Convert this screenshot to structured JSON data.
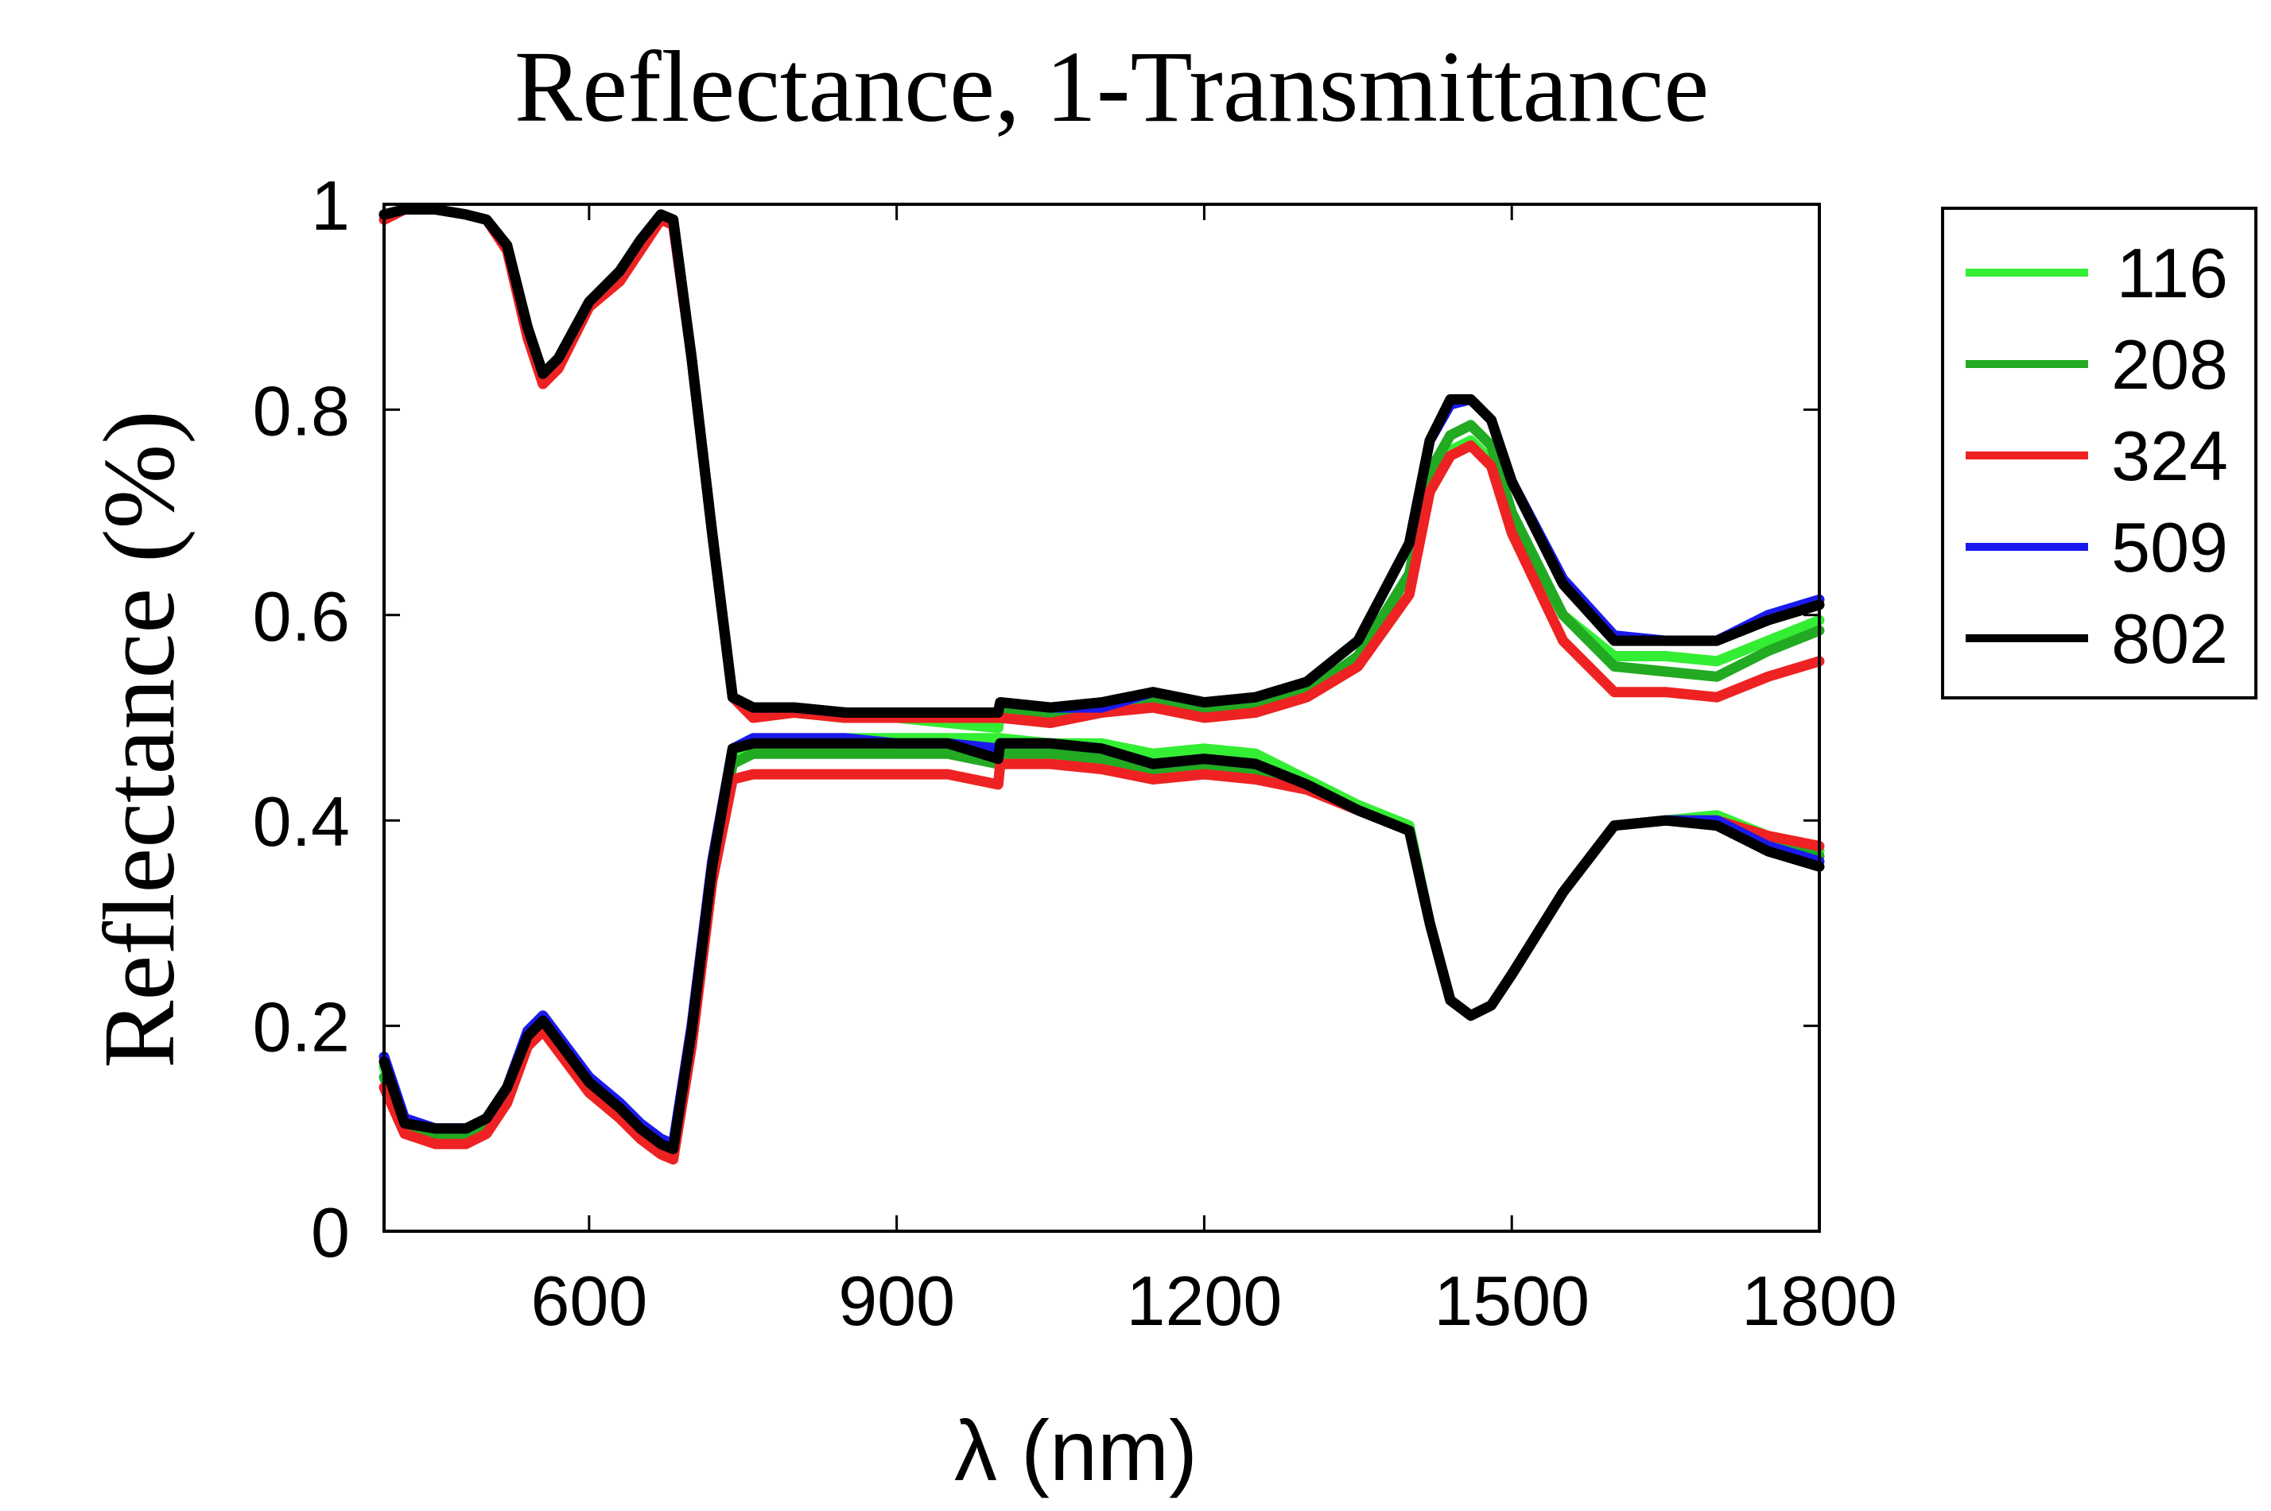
{
  "chart_data": {
    "type": "line",
    "title": "Reflectance, 1-Transmittance",
    "xlabel": "λ (nm)",
    "ylabel": "Reflectance (%)",
    "xlim": [
      400,
      1800
    ],
    "ylim": [
      0,
      1
    ],
    "xticks": [
      600,
      900,
      1200,
      1500,
      1800
    ],
    "yticks": [
      0,
      0.2,
      0.4,
      0.6,
      0.8,
      1
    ],
    "ytick_labels": [
      "0",
      "0.2",
      "0.4",
      "0.6",
      "0.8",
      "1"
    ],
    "legend_position": "outside-right-top",
    "x": [
      400,
      420,
      450,
      480,
      500,
      520,
      540,
      555,
      570,
      600,
      630,
      650,
      670,
      682,
      700,
      720,
      740,
      760,
      800,
      850,
      900,
      950,
      999,
      1001,
      1050,
      1100,
      1150,
      1200,
      1250,
      1300,
      1350,
      1400,
      1420,
      1440,
      1460,
      1480,
      1500,
      1550,
      1600,
      1650,
      1700,
      1750,
      1800
    ],
    "series": [
      {
        "name": "116",
        "color": "#33ee33",
        "upper": [
          0.99,
          0.995,
          0.995,
          0.99,
          0.985,
          0.96,
          0.88,
          0.835,
          0.85,
          0.905,
          0.935,
          0.965,
          0.99,
          0.985,
          0.85,
          0.68,
          0.52,
          0.505,
          0.505,
          0.5,
          0.5,
          0.495,
          0.49,
          0.51,
          0.505,
          0.51,
          0.52,
          0.51,
          0.51,
          0.525,
          0.56,
          0.64,
          0.72,
          0.76,
          0.77,
          0.75,
          0.69,
          0.6,
          0.56,
          0.56,
          0.555,
          0.575,
          0.595
        ],
        "lower": [
          0.16,
          0.105,
          0.095,
          0.095,
          0.105,
          0.135,
          0.19,
          0.205,
          0.185,
          0.145,
          0.12,
          0.1,
          0.085,
          0.08,
          0.19,
          0.35,
          0.46,
          0.475,
          0.475,
          0.48,
          0.48,
          0.48,
          0.48,
          0.48,
          0.475,
          0.475,
          0.465,
          0.47,
          0.465,
          0.44,
          0.415,
          0.395,
          0.3,
          0.225,
          0.21,
          0.22,
          0.25,
          0.33,
          0.395,
          0.4,
          0.405,
          0.385,
          0.37
        ]
      },
      {
        "name": "208",
        "color": "#22aa22",
        "upper": [
          0.99,
          0.995,
          0.995,
          0.99,
          0.985,
          0.96,
          0.88,
          0.835,
          0.85,
          0.905,
          0.935,
          0.965,
          0.99,
          0.985,
          0.85,
          0.68,
          0.52,
          0.505,
          0.505,
          0.5,
          0.5,
          0.5,
          0.5,
          0.505,
          0.5,
          0.505,
          0.515,
          0.505,
          0.51,
          0.525,
          0.56,
          0.64,
          0.74,
          0.775,
          0.785,
          0.765,
          0.7,
          0.6,
          0.55,
          0.545,
          0.54,
          0.565,
          0.585
        ],
        "lower": [
          0.15,
          0.1,
          0.09,
          0.09,
          0.1,
          0.13,
          0.185,
          0.2,
          0.18,
          0.14,
          0.115,
          0.095,
          0.085,
          0.08,
          0.19,
          0.35,
          0.455,
          0.465,
          0.465,
          0.465,
          0.465,
          0.465,
          0.455,
          0.465,
          0.465,
          0.46,
          0.45,
          0.455,
          0.45,
          0.435,
          0.41,
          0.39,
          0.3,
          0.225,
          0.21,
          0.22,
          0.25,
          0.33,
          0.395,
          0.4,
          0.4,
          0.38,
          0.365
        ]
      },
      {
        "name": "324",
        "color": "#ee2222",
        "upper": [
          0.985,
          0.995,
          0.995,
          0.99,
          0.985,
          0.955,
          0.87,
          0.825,
          0.84,
          0.9,
          0.925,
          0.955,
          0.985,
          0.98,
          0.85,
          0.68,
          0.52,
          0.5,
          0.505,
          0.5,
          0.5,
          0.5,
          0.5,
          0.5,
          0.495,
          0.505,
          0.51,
          0.5,
          0.505,
          0.52,
          0.55,
          0.62,
          0.72,
          0.755,
          0.765,
          0.745,
          0.68,
          0.575,
          0.525,
          0.525,
          0.52,
          0.54,
          0.555
        ],
        "lower": [
          0.14,
          0.095,
          0.085,
          0.085,
          0.095,
          0.125,
          0.18,
          0.195,
          0.175,
          0.135,
          0.11,
          0.09,
          0.075,
          0.07,
          0.18,
          0.34,
          0.44,
          0.445,
          0.445,
          0.445,
          0.445,
          0.445,
          0.435,
          0.455,
          0.455,
          0.45,
          0.44,
          0.445,
          0.44,
          0.43,
          0.41,
          0.39,
          0.3,
          0.225,
          0.21,
          0.22,
          0.25,
          0.33,
          0.395,
          0.4,
          0.4,
          0.385,
          0.375
        ]
      },
      {
        "name": "509",
        "color": "#1a1aee",
        "upper": [
          0.99,
          0.995,
          0.995,
          0.99,
          0.985,
          0.96,
          0.88,
          0.835,
          0.85,
          0.905,
          0.935,
          0.965,
          0.99,
          0.985,
          0.85,
          0.68,
          0.52,
          0.51,
          0.51,
          0.505,
          0.505,
          0.505,
          0.505,
          0.515,
          0.51,
          0.51,
          0.525,
          0.515,
          0.52,
          0.535,
          0.575,
          0.67,
          0.77,
          0.805,
          0.81,
          0.79,
          0.73,
          0.635,
          0.58,
          0.575,
          0.575,
          0.6,
          0.615
        ],
        "lower": [
          0.17,
          0.11,
          0.1,
          0.1,
          0.11,
          0.14,
          0.195,
          0.21,
          0.19,
          0.15,
          0.125,
          0.105,
          0.09,
          0.085,
          0.2,
          0.36,
          0.47,
          0.48,
          0.48,
          0.48,
          0.475,
          0.475,
          0.47,
          0.475,
          0.475,
          0.47,
          0.455,
          0.46,
          0.455,
          0.435,
          0.41,
          0.39,
          0.3,
          0.225,
          0.21,
          0.22,
          0.25,
          0.33,
          0.395,
          0.4,
          0.4,
          0.375,
          0.36
        ]
      },
      {
        "name": "802",
        "color": "#000000",
        "upper": [
          0.99,
          0.995,
          0.995,
          0.99,
          0.985,
          0.96,
          0.88,
          0.835,
          0.85,
          0.905,
          0.935,
          0.965,
          0.99,
          0.985,
          0.85,
          0.68,
          0.52,
          0.51,
          0.51,
          0.505,
          0.505,
          0.505,
          0.505,
          0.515,
          0.51,
          0.515,
          0.525,
          0.515,
          0.52,
          0.535,
          0.575,
          0.67,
          0.77,
          0.81,
          0.81,
          0.79,
          0.73,
          0.63,
          0.575,
          0.575,
          0.575,
          0.595,
          0.61
        ],
        "lower": [
          0.165,
          0.105,
          0.1,
          0.1,
          0.11,
          0.14,
          0.19,
          0.205,
          0.185,
          0.145,
          0.12,
          0.1,
          0.085,
          0.08,
          0.195,
          0.355,
          0.47,
          0.475,
          0.475,
          0.475,
          0.475,
          0.475,
          0.46,
          0.475,
          0.475,
          0.47,
          0.455,
          0.46,
          0.455,
          0.435,
          0.41,
          0.39,
          0.3,
          0.225,
          0.21,
          0.22,
          0.25,
          0.33,
          0.395,
          0.4,
          0.395,
          0.37,
          0.355
        ]
      }
    ]
  }
}
